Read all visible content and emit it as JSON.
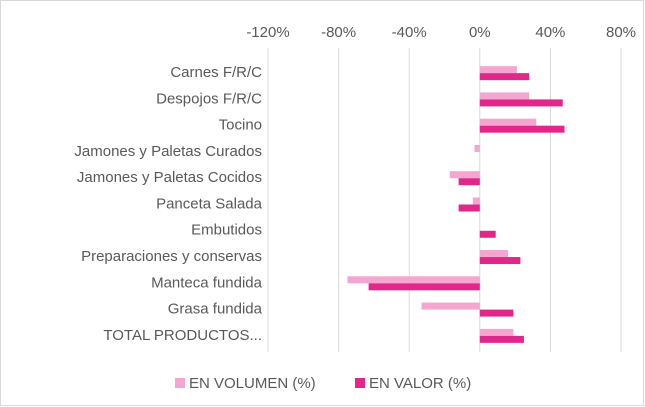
{
  "chart_data": {
    "type": "hbar",
    "categories": [
      "Carnes F/R/C",
      "Despojos F/R/C",
      "Tocino",
      "Jamones y Paletas Curados",
      "Jamones y Paletas Cocidos",
      "Panceta Salada",
      "Embutidos",
      "Preparaciones y conservas",
      "Manteca fundida",
      "Grasa fundida",
      "TOTAL PRODUCTOS..."
    ],
    "series": [
      {
        "name": "EN VOLUMEN (%)",
        "color": "#f4a6d0",
        "values": [
          21,
          28,
          32,
          -3,
          -17,
          -4,
          0,
          16,
          -75,
          -33,
          19
        ]
      },
      {
        "name": "EN VALOR (%)",
        "color": "#e0288a",
        "values": [
          28,
          47,
          48,
          0,
          -12,
          -12,
          9,
          23,
          -63,
          19,
          25
        ]
      }
    ],
    "xlim": [
      -120,
      80
    ],
    "xticks": [
      {
        "value": -120,
        "label": "-120%"
      },
      {
        "value": -80,
        "label": "-80%"
      },
      {
        "value": -40,
        "label": "-40%"
      },
      {
        "value": 0,
        "label": "0%"
      },
      {
        "value": 40,
        "label": "40%"
      },
      {
        "value": 80,
        "label": "80%"
      }
    ],
    "grid": true,
    "legend": "bottom"
  }
}
